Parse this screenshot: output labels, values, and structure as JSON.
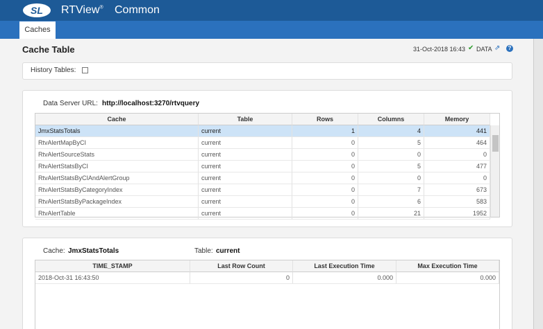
{
  "header": {
    "logo": "SL",
    "product": "RTView",
    "trademark": "®",
    "app": "Common"
  },
  "tabs": [
    "Caches"
  ],
  "page": {
    "title": "Cache Table",
    "timestamp": "31-Oct-2018 16:43",
    "data_label": "DATA"
  },
  "history": {
    "label": "History Tables:"
  },
  "server": {
    "label": "Data Server URL:",
    "url": "http://localhost:3270/rtvquery"
  },
  "cache_table": {
    "columns": [
      "Cache",
      "Table",
      "Rows",
      "Columns",
      "Memory"
    ],
    "rows": [
      [
        "JmxStatsTotals",
        "current",
        1,
        4,
        441
      ],
      [
        "RtvAlertMapByCI",
        "current",
        0,
        5,
        464
      ],
      [
        "RtvAlertSourceStats",
        "current",
        0,
        0,
        0
      ],
      [
        "RtvAlertStatsByCI",
        "current",
        0,
        5,
        477
      ],
      [
        "RtvAlertStatsByCIAndAlertGroup",
        "current",
        0,
        0,
        0
      ],
      [
        "RtvAlertStatsByCategoryIndex",
        "current",
        0,
        7,
        673
      ],
      [
        "RtvAlertStatsByPackageIndex",
        "current",
        0,
        6,
        583
      ],
      [
        "RtvAlertTable",
        "current",
        0,
        21,
        1952
      ]
    ]
  },
  "detail": {
    "cache_label": "Cache:",
    "cache": "JmxStatsTotals",
    "table_label": "Table:",
    "table": "current",
    "columns": [
      "TIME_STAMP",
      "Last Row Count",
      "Last Execution Time",
      "Max Execution Time"
    ],
    "rows": [
      [
        "2018-Oct-31 16:43:50",
        0,
        "0.000",
        "0.000"
      ]
    ]
  }
}
